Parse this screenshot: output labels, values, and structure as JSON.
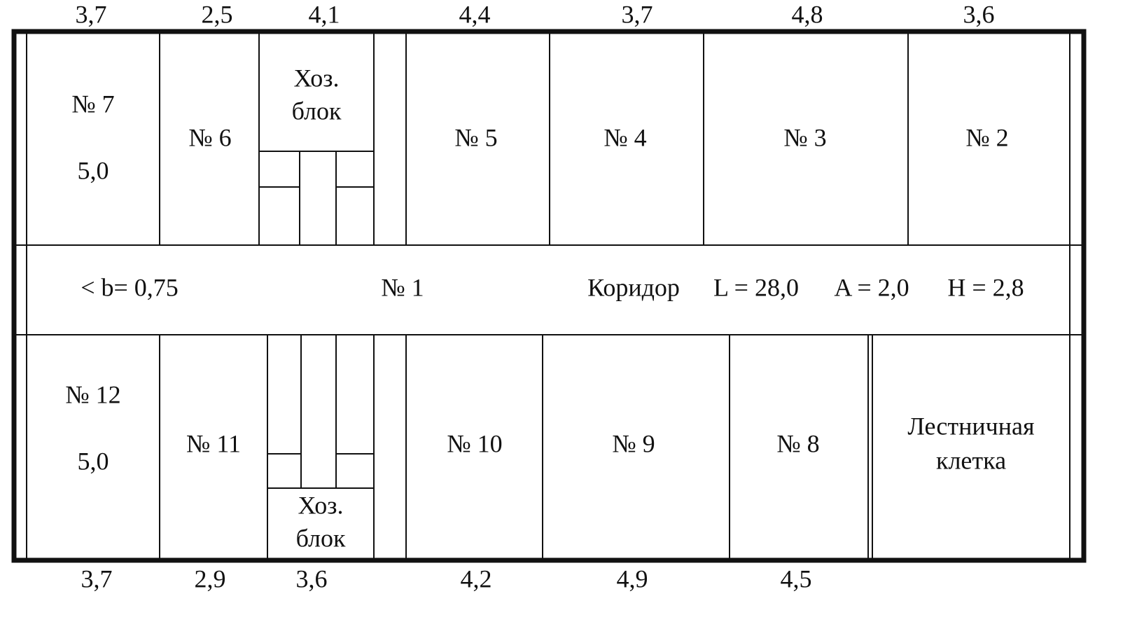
{
  "dimensions": {
    "top": [
      "3,7",
      "2,5",
      "4,1",
      "4,4",
      "3,7",
      "4,8",
      "3,6"
    ],
    "bottom": [
      "3,7",
      "2,9",
      "3,6",
      "4,2",
      "4,9",
      "4,5"
    ]
  },
  "rooms_top": [
    {
      "lines": [
        "№ 7",
        "5,0"
      ]
    },
    {
      "lines": [
        "№ 6"
      ]
    },
    {
      "lines": [
        "Хоз.",
        "блок"
      ]
    },
    {
      "lines": [
        "№ 5"
      ]
    },
    {
      "lines": [
        "№ 4"
      ]
    },
    {
      "lines": [
        "№ 3"
      ]
    },
    {
      "lines": [
        "№ 2"
      ]
    }
  ],
  "corridor": {
    "width_note": "< b= 0,75",
    "number": "№ 1",
    "name": "Коридор",
    "length": "L = 28,0",
    "area": "A = 2,0",
    "height": "H = 2,8"
  },
  "rooms_bottom": [
    {
      "lines": [
        "№ 12",
        "5,0"
      ]
    },
    {
      "lines": [
        "№ 11"
      ]
    },
    {
      "lines": [
        "Хоз.",
        "блок"
      ]
    },
    {
      "lines": [
        "№ 10"
      ]
    },
    {
      "lines": [
        "№ 9"
      ]
    },
    {
      "lines": [
        "№ 8"
      ]
    },
    {
      "lines": [
        "Лестничная",
        "клетка"
      ]
    }
  ]
}
